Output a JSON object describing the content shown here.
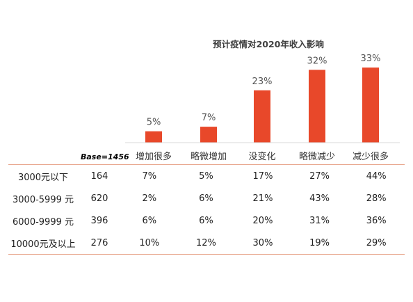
{
  "chart_data": {
    "type": "bar",
    "title": "预计疫情对2020年收入影响",
    "categories": [
      "增加很多",
      "略微增加",
      "没变化",
      "略微减少",
      "减少很多"
    ],
    "values": [
      5,
      7,
      23,
      32,
      33
    ],
    "value_labels": [
      "5%",
      "7%",
      "23%",
      "32%",
      "33%"
    ],
    "ylim": [
      0,
      35
    ],
    "bar_color": "#e8482a",
    "grid": false,
    "base_label": "Base=1456"
  },
  "table": {
    "rows": [
      {
        "income": "3000元以下",
        "n": "164",
        "cells": [
          "7%",
          "5%",
          "17%",
          "27%",
          "44%"
        ],
        "highlight": [
          false,
          false,
          false,
          true,
          true
        ]
      },
      {
        "income": "3000-5999 元",
        "n": "620",
        "cells": [
          "2%",
          "6%",
          "21%",
          "43%",
          "28%"
        ],
        "highlight": [
          false,
          false,
          false,
          true,
          true
        ]
      },
      {
        "income": "6000-9999 元",
        "n": "396",
        "cells": [
          "6%",
          "6%",
          "20%",
          "31%",
          "36%"
        ],
        "highlight": [
          false,
          false,
          false,
          true,
          true
        ]
      },
      {
        "income": "10000元及以上",
        "n": "276",
        "cells": [
          "10%",
          "12%",
          "30%",
          "19%",
          "29%"
        ],
        "highlight": [
          false,
          false,
          false,
          false,
          false
        ]
      }
    ],
    "highlight_color": "#d9542e",
    "rule_color": "#e8a88f"
  }
}
